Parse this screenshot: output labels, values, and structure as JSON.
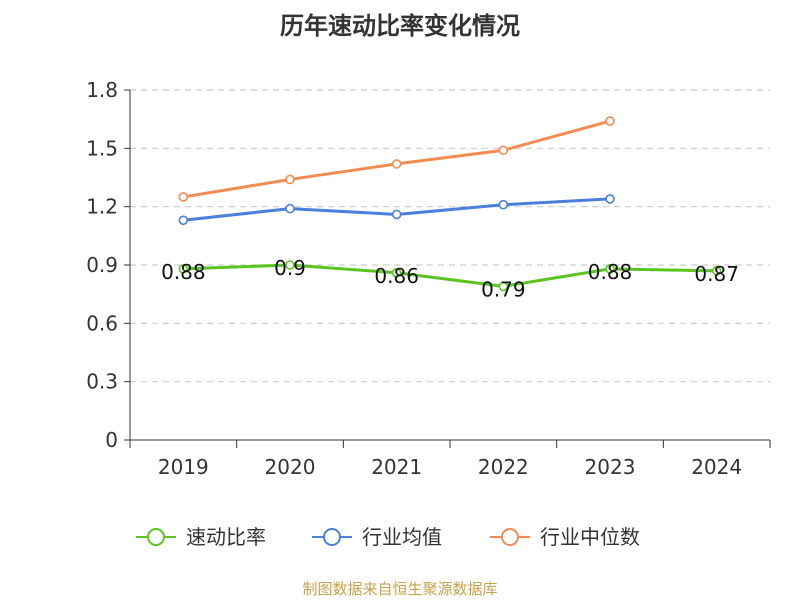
{
  "chart_data": {
    "type": "line",
    "title": "历年速动比率变化情况",
    "categories": [
      "2019",
      "2020",
      "2021",
      "2022",
      "2023",
      "2024"
    ],
    "ylim": [
      0,
      1.8
    ],
    "yticks": [
      "0",
      "0.3",
      "0.6",
      "0.9",
      "1.2",
      "1.5",
      "1.8"
    ],
    "grid": true,
    "legend_position": "bottom",
    "series": [
      {
        "name": "速动比率",
        "color": "#5cc41f",
        "values": [
          0.88,
          0.9,
          0.86,
          0.79,
          0.88,
          0.87
        ],
        "labels": [
          "0.88",
          "0.9",
          "0.86",
          "0.79",
          "0.88",
          "0.87"
        ]
      },
      {
        "name": "行业均值",
        "color": "#4a7fdc",
        "values": [
          1.13,
          1.19,
          1.16,
          1.21,
          1.24,
          null
        ]
      },
      {
        "name": "行业中位数",
        "color": "#f28c52",
        "values": [
          1.25,
          1.34,
          1.42,
          1.49,
          1.64,
          null
        ]
      }
    ]
  },
  "footer": {
    "source": "制图数据来自恒生聚源数据库"
  }
}
